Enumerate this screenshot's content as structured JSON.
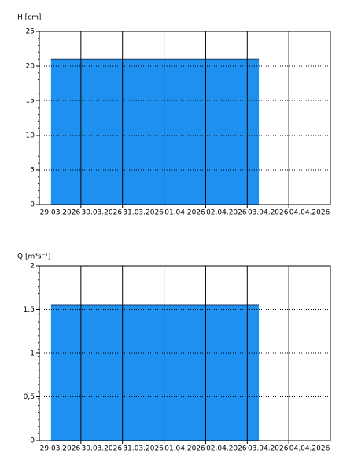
{
  "chart_data": [
    {
      "type": "area",
      "y_label": "H [cm]",
      "categories": [
        "29.03.2026",
        "30.03.2026",
        "31.03.2026",
        "01.04.2026",
        "02.04.2026",
        "03.04.2026",
        "04.04.2026"
      ],
      "values": [
        21,
        21,
        21,
        21,
        21,
        21,
        null
      ],
      "color": "#1e90ef",
      "ylim": [
        0,
        25
      ],
      "yticks": [
        0,
        5,
        10,
        15,
        20,
        25
      ],
      "grid": true
    },
    {
      "type": "area",
      "y_label": "Q [m³s⁻¹]",
      "categories": [
        "29.03.2026",
        "30.03.2026",
        "31.03.2026",
        "01.04.2026",
        "02.04.2026",
        "03.04.2026",
        "04.04.2026"
      ],
      "values": [
        1.55,
        1.55,
        1.55,
        1.55,
        1.55,
        1.55,
        null
      ],
      "color": "#1e90ef",
      "ylim": [
        0,
        2
      ],
      "yticks": [
        0,
        {
          "value": 0.5,
          "label": "0,5"
        },
        1,
        {
          "value": 1.5,
          "label": "1,5"
        },
        2
      ],
      "grid": true
    }
  ]
}
